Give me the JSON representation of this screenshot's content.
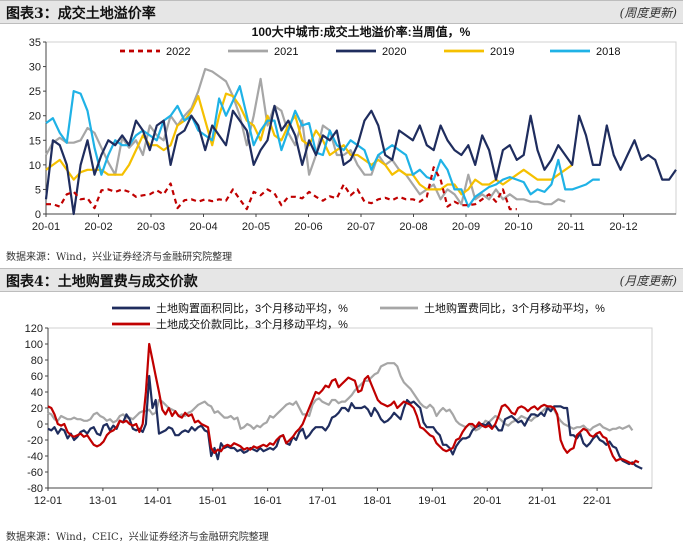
{
  "figures": [
    {
      "title": "图表3：成交土地溢价率",
      "update_note": "(周度更新)",
      "source": "数据来源：Wind，兴业证券经济与金融研究院整理"
    },
    {
      "title": "图表4：土地购置费与成交价款",
      "update_note": "(月度更新)",
      "source": "数据来源：Wind，CEIC，兴业证券经济与金融研究院整理"
    }
  ],
  "chart_data": [
    {
      "type": "line",
      "title": "100大中城市:成交土地溢价率:当周值，%",
      "x_ticks": [
        "20-01",
        "20-02",
        "20-03",
        "20-04",
        "20-05",
        "20-06",
        "20-07",
        "20-08",
        "20-09",
        "20-10",
        "20-11",
        "20-12"
      ],
      "ylim": [
        0,
        35
      ],
      "y_ticks": [
        0,
        5,
        10,
        15,
        20,
        25,
        30,
        35
      ],
      "grid": false,
      "legend_position": "top",
      "series": [
        {
          "name": "2022",
          "color": "#c00000",
          "dash": true,
          "values": [
            2,
            2,
            1.5,
            4,
            4.5,
            3,
            3.2,
            1.2,
            4.8,
            5,
            4.5,
            5,
            4.5,
            3.5,
            3.8,
            4,
            4.8,
            4,
            6.2,
            1.2,
            2.8,
            3,
            2.5,
            3,
            2.6,
            3,
            2.7,
            5,
            3,
            1,
            4.5,
            3.8,
            5,
            4.2,
            1.8,
            3.5,
            3.5,
            3.2,
            4.5,
            3.5,
            2.7,
            3.6,
            3.2,
            6,
            3.8,
            5,
            2.5,
            2.2,
            3,
            3.3,
            2.8,
            3.5,
            3,
            3,
            2.5,
            3.5,
            9.5,
            7,
            1.5,
            2.5,
            1.8,
            1.8,
            2,
            3,
            4,
            2.5,
            5,
            1,
            1
          ]
        },
        {
          "name": "2021",
          "color": "#a6a6a6",
          "values": [
            12,
            14.5,
            15.5,
            14.5,
            14.5,
            15,
            17.5,
            16.5,
            13.5,
            10.5,
            8,
            15.5,
            13.5,
            15,
            12,
            18,
            16,
            15,
            20,
            18,
            20,
            21.5,
            25,
            29.5,
            29,
            28,
            27,
            24,
            20,
            14,
            20,
            27.5,
            18,
            22,
            21,
            16.5,
            14,
            19,
            8,
            12,
            18,
            17,
            12,
            12,
            13,
            10,
            8,
            8,
            12,
            10,
            11,
            9,
            8,
            6,
            4,
            5,
            6,
            3,
            5,
            4,
            2,
            8,
            3,
            4,
            3,
            5,
            3,
            4,
            3,
            3,
            2.5,
            2.5,
            2,
            2,
            3,
            2.5
          ]
        },
        {
          "name": "2020",
          "color": "#1f2d5e",
          "values": [
            3,
            15,
            14,
            10,
            0,
            10,
            15,
            8,
            12,
            15,
            14,
            16,
            14,
            19,
            17,
            13,
            18,
            19,
            10,
            16,
            17,
            20,
            18,
            13,
            18,
            16,
            14,
            21,
            19,
            17,
            10,
            13,
            15,
            22,
            17,
            19,
            16,
            10,
            15,
            12,
            16,
            15,
            17,
            10,
            11,
            14,
            19,
            21,
            18,
            12,
            11,
            17,
            16,
            15,
            18,
            14,
            13,
            18,
            15,
            13,
            12,
            14,
            10,
            16,
            13,
            7,
            13,
            14,
            11,
            12,
            20,
            13,
            9,
            11,
            14,
            12,
            10,
            20,
            16,
            10,
            10,
            18,
            12,
            9,
            12,
            15,
            11,
            12,
            11,
            7,
            7,
            9
          ]
        },
        {
          "name": "2019",
          "color": "#f5c000",
          "values": [
            9,
            10,
            11,
            9,
            7,
            8.5,
            9,
            9,
            9,
            8,
            8,
            8,
            10,
            13,
            16,
            14,
            14,
            13,
            14,
            18,
            19,
            21,
            24,
            19,
            14,
            20,
            24.5,
            24,
            22,
            19,
            18,
            15,
            20,
            16,
            15,
            18,
            20,
            15,
            14,
            17,
            15,
            12,
            13,
            14,
            12,
            12,
            11,
            10,
            11,
            10,
            8,
            9,
            8,
            8,
            6,
            5,
            5,
            5,
            6,
            6,
            4,
            5,
            7,
            6,
            6,
            7,
            6,
            7,
            8,
            9,
            8,
            7,
            7,
            7,
            8,
            9,
            10
          ]
        },
        {
          "name": "2018",
          "color": "#1fb2e6",
          "values": [
            18.5,
            19.5,
            16.5,
            14.5,
            25,
            24.5,
            21,
            13.5,
            8,
            12,
            15,
            14,
            14,
            16,
            17,
            16,
            15,
            19,
            20,
            22,
            19,
            20,
            17,
            16,
            15,
            23.5,
            20,
            23,
            26,
            20,
            14,
            17,
            19,
            19,
            13,
            17,
            21,
            18,
            18.5,
            12.5,
            12,
            17,
            14,
            13,
            15,
            14,
            13,
            9,
            12,
            13,
            14,
            13,
            12,
            8,
            9,
            7.5,
            7,
            11,
            9,
            5,
            5,
            1.5,
            3.5,
            4.5,
            5.5,
            6,
            7,
            7.5,
            7,
            6.5,
            4,
            5,
            4.5,
            6,
            11,
            5,
            5,
            5.5,
            6,
            7,
            7
          ]
        }
      ]
    },
    {
      "type": "line",
      "title": "",
      "x_ticks": [
        "12-01",
        "13-01",
        "14-01",
        "15-01",
        "16-01",
        "17-01",
        "18-01",
        "19-01",
        "20-01",
        "21-01",
        "22-01"
      ],
      "ylim": [
        -80,
        120
      ],
      "y_ticks": [
        -80,
        -60,
        -40,
        -20,
        0,
        20,
        40,
        60,
        80,
        100,
        120
      ],
      "grid": false,
      "legend_position": "top",
      "series": [
        {
          "name": "土地购置面积同比，3个月移动平均，%",
          "color": "#1f2d5e",
          "values": [
            -6,
            -8,
            -4,
            -12,
            -6,
            -8,
            -18,
            -12,
            -20,
            -16,
            -10,
            -8,
            -12,
            -6,
            -4,
            -12,
            -14,
            -2,
            0,
            -8,
            -2,
            -6,
            4,
            2,
            12,
            6,
            -6,
            -8,
            -6,
            -10,
            0,
            60,
            20,
            30,
            -12,
            -10,
            -8,
            -4,
            -6,
            -14,
            -14,
            -10,
            -8,
            -10,
            -4,
            -8,
            -4,
            -2,
            -8,
            -10,
            -40,
            -30,
            -44,
            -24,
            -30,
            -28,
            -30,
            -30,
            -34,
            -32,
            -36,
            -34,
            -30,
            -32,
            -34,
            -30,
            -34,
            -32,
            -30,
            -32,
            -28,
            -16,
            -14,
            -24,
            -26,
            -16,
            -20,
            -10,
            -6,
            -18,
            -14,
            -8,
            -4,
            -4,
            -4,
            -8,
            -2,
            8,
            10,
            14,
            20,
            20,
            16,
            26,
            20,
            20,
            20,
            22,
            18,
            10,
            20,
            14,
            6,
            2,
            4,
            8,
            14,
            10,
            6,
            20,
            30,
            26,
            28,
            24,
            20,
            2,
            -4,
            -4,
            -4,
            -10,
            -14,
            -26,
            -26,
            -30,
            -38,
            -28,
            -22,
            -18,
            -18,
            -16,
            -8,
            -4,
            -2,
            0,
            -2,
            2,
            -4,
            -2,
            -8,
            -8,
            6,
            8,
            10,
            6,
            2,
            4,
            -2,
            6,
            12,
            12,
            10,
            14,
            10,
            20,
            16,
            22,
            22,
            22,
            20,
            20,
            -14,
            -14,
            -18,
            -12,
            -24,
            -28,
            -24,
            -18,
            -14,
            -20,
            -22,
            -26,
            -22,
            -28,
            -30,
            -40,
            -46,
            -48,
            -50,
            -48,
            -52,
            -54,
            -56
          ]
        },
        {
          "name": "土地购置费同比，3个月移动平均，%",
          "color": "#a6a6a6",
          "values": [
            14,
            12,
            6,
            4,
            10,
            8,
            6,
            6,
            8,
            6,
            6,
            4,
            4,
            6,
            12,
            14,
            10,
            8,
            4,
            6,
            2,
            4,
            10,
            12,
            8,
            8,
            6,
            10,
            14,
            16,
            16,
            18,
            12,
            14,
            30,
            28,
            24,
            20,
            18,
            16,
            10,
            12,
            10,
            14,
            16,
            20,
            24,
            26,
            28,
            24,
            22,
            14,
            16,
            12,
            8,
            8,
            10,
            6,
            8,
            -6,
            -4,
            0,
            -2,
            -6,
            -2,
            -4,
            0,
            2,
            10,
            8,
            12,
            16,
            20,
            24,
            26,
            24,
            28,
            20,
            12,
            12,
            10,
            24,
            30,
            32,
            28,
            26,
            24,
            30,
            30,
            26,
            28,
            28,
            32,
            36,
            42,
            46,
            50,
            54,
            54,
            58,
            62,
            64,
            72,
            74,
            76,
            76,
            76,
            72,
            60,
            52,
            48,
            44,
            38,
            32,
            26,
            22,
            20,
            24,
            20,
            10,
            16,
            20,
            16,
            18,
            12,
            4,
            0,
            -2,
            -4,
            0,
            -4,
            -8,
            -6,
            -2,
            4,
            2,
            6,
            10,
            8,
            4,
            0,
            -2,
            2,
            4,
            6,
            10,
            8,
            6,
            4,
            8,
            10,
            14,
            18,
            22,
            20,
            18,
            10,
            4,
            0,
            -2,
            -4,
            -6,
            -4,
            -4,
            -2,
            -6,
            -8,
            -4,
            -2,
            0,
            -4,
            -6,
            -8,
            -6,
            -6,
            -4,
            -6,
            -4,
            -2,
            -8
          ]
        },
        {
          "name": "土地成交价款同比，3个月移动平均，%",
          "color": "#c00000",
          "values": [
            22,
            20,
            12,
            0,
            -2,
            0,
            -10,
            -14,
            -16,
            -14,
            -12,
            -16,
            -14,
            -20,
            -26,
            -28,
            -26,
            -22,
            -14,
            -10,
            -8,
            -4,
            4,
            2,
            4,
            0,
            -2,
            0,
            -10,
            0,
            40,
            100,
            80,
            60,
            40,
            18,
            12,
            20,
            10,
            16,
            10,
            8,
            14,
            10,
            12,
            2,
            4,
            0,
            -2,
            -4,
            -30,
            -36,
            -32,
            -34,
            -28,
            -26,
            -28,
            -24,
            -26,
            -28,
            -32,
            -30,
            -32,
            -28,
            -30,
            -28,
            -26,
            -28,
            -24,
            -26,
            -20,
            -16,
            -14,
            -24,
            -20,
            -16,
            -10,
            -6,
            0,
            10,
            20,
            30,
            40,
            38,
            42,
            48,
            46,
            54,
            56,
            46,
            50,
            54,
            58,
            56,
            54,
            40,
            42,
            56,
            60,
            50,
            40,
            30,
            26,
            24,
            22,
            24,
            28,
            20,
            24,
            28,
            26,
            24,
            20,
            10,
            -4,
            -6,
            -10,
            -14,
            -16,
            -24,
            -28,
            -32,
            -34,
            -32,
            -30,
            -20,
            -18,
            -10,
            -4,
            0,
            0,
            -4,
            2,
            -2,
            -4,
            -2,
            -6,
            0,
            10,
            22,
            24,
            20,
            14,
            12,
            20,
            22,
            20,
            16,
            20,
            22,
            18,
            22,
            24,
            22,
            22,
            20,
            12,
            -20,
            -30,
            -36,
            -32,
            -30,
            -14,
            -10,
            -6,
            -8,
            -14,
            -16,
            -12,
            -10,
            -16,
            -18,
            -30,
            -40,
            -46,
            -44,
            -44,
            -46,
            -48,
            -50,
            -46,
            -48
          ]
        }
      ]
    }
  ]
}
